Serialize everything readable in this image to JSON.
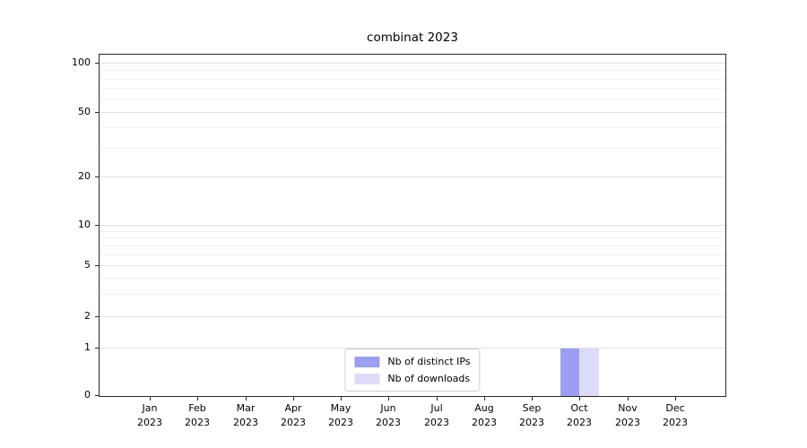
{
  "chart_data": {
    "type": "bar",
    "title": "combinat 2023",
    "x_axis": {
      "months": [
        "Jan",
        "Feb",
        "Mar",
        "Apr",
        "May",
        "Jun",
        "Jul",
        "Aug",
        "Sep",
        "Oct",
        "Nov",
        "Dec"
      ],
      "year": "2023"
    },
    "y_axis": {
      "scale": "symlog",
      "ticks": [
        0,
        1,
        2,
        5,
        10,
        20,
        50,
        100
      ],
      "ylim": [
        0,
        120
      ]
    },
    "series": [
      {
        "name": "Nb of distinct IPs",
        "color": "#9e9ef0",
        "values": [
          0,
          0,
          0,
          0,
          0,
          0,
          0,
          0,
          0,
          1,
          0,
          0
        ]
      },
      {
        "name": "Nb of downloads",
        "color": "#dcdcf8",
        "values": [
          0,
          0,
          0,
          0,
          0,
          0,
          0,
          0,
          0,
          1,
          0,
          0
        ]
      }
    ],
    "legend": {
      "position": "lower center",
      "entries": [
        "Nb of distinct IPs",
        "Nb of downloads"
      ]
    },
    "grid": true
  }
}
